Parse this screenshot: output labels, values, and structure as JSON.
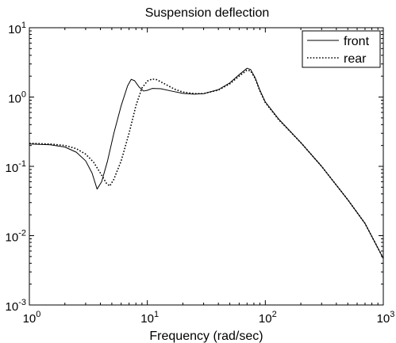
{
  "chart_data": {
    "type": "line",
    "title": "Suspension deflection",
    "xlabel": "Frequency (rad/sec)",
    "ylabel": "",
    "xscale": "log",
    "yscale": "log",
    "xlim": [
      1,
      1000
    ],
    "ylim": [
      0.001,
      10
    ],
    "grid": false,
    "legend_position": "top-right",
    "x_ticks": [
      {
        "base": "10",
        "exp": "0",
        "value": 1
      },
      {
        "base": "10",
        "exp": "1",
        "value": 10
      },
      {
        "base": "10",
        "exp": "2",
        "value": 100
      },
      {
        "base": "10",
        "exp": "3",
        "value": 1000
      }
    ],
    "y_ticks": [
      {
        "base": "10",
        "exp": "-3",
        "value": 0.001
      },
      {
        "base": "10",
        "exp": "-2",
        "value": 0.01
      },
      {
        "base": "10",
        "exp": "-1",
        "value": 0.1
      },
      {
        "base": "10",
        "exp": "0",
        "value": 1
      },
      {
        "base": "10",
        "exp": "1",
        "value": 10
      }
    ],
    "series": [
      {
        "name": "front",
        "style": "solid",
        "color": "#000000",
        "points": [
          [
            1,
            0.21
          ],
          [
            1.5,
            0.205
          ],
          [
            2,
            0.19
          ],
          [
            2.5,
            0.16
          ],
          [
            3,
            0.12
          ],
          [
            3.4,
            0.08
          ],
          [
            3.75,
            0.047
          ],
          [
            4.1,
            0.06
          ],
          [
            4.6,
            0.12
          ],
          [
            5.2,
            0.3
          ],
          [
            6,
            0.75
          ],
          [
            6.8,
            1.45
          ],
          [
            7.3,
            1.8
          ],
          [
            7.8,
            1.72
          ],
          [
            8.5,
            1.4
          ],
          [
            9.3,
            1.22
          ],
          [
            10,
            1.25
          ],
          [
            11,
            1.33
          ],
          [
            13,
            1.32
          ],
          [
            16,
            1.22
          ],
          [
            20,
            1.13
          ],
          [
            25,
            1.1
          ],
          [
            30,
            1.12
          ],
          [
            40,
            1.28
          ],
          [
            50,
            1.6
          ],
          [
            60,
            2.1
          ],
          [
            70,
            2.6
          ],
          [
            75,
            2.5
          ],
          [
            82,
            1.9
          ],
          [
            90,
            1.25
          ],
          [
            100,
            0.85
          ],
          [
            130,
            0.48
          ],
          [
            200,
            0.22
          ],
          [
            300,
            0.1
          ],
          [
            500,
            0.033
          ],
          [
            700,
            0.015
          ],
          [
            1000,
            0.0047
          ]
        ]
      },
      {
        "name": "rear",
        "style": "dotted",
        "color": "#000000",
        "points": [
          [
            1,
            0.215
          ],
          [
            1.5,
            0.21
          ],
          [
            2,
            0.2
          ],
          [
            2.5,
            0.18
          ],
          [
            3,
            0.15
          ],
          [
            3.5,
            0.115
          ],
          [
            4,
            0.08
          ],
          [
            4.5,
            0.057
          ],
          [
            4.8,
            0.052
          ],
          [
            5.2,
            0.065
          ],
          [
            6,
            0.12
          ],
          [
            7,
            0.3
          ],
          [
            8,
            0.75
          ],
          [
            9,
            1.35
          ],
          [
            10,
            1.7
          ],
          [
            11,
            1.82
          ],
          [
            12,
            1.78
          ],
          [
            14,
            1.55
          ],
          [
            17,
            1.3
          ],
          [
            20,
            1.18
          ],
          [
            25,
            1.12
          ],
          [
            30,
            1.12
          ],
          [
            40,
            1.26
          ],
          [
            50,
            1.55
          ],
          [
            60,
            2.0
          ],
          [
            70,
            2.45
          ],
          [
            75,
            2.38
          ],
          [
            82,
            1.85
          ],
          [
            90,
            1.22
          ],
          [
            100,
            0.83
          ],
          [
            130,
            0.47
          ],
          [
            200,
            0.22
          ],
          [
            300,
            0.1
          ],
          [
            500,
            0.033
          ],
          [
            700,
            0.015
          ],
          [
            1000,
            0.0047
          ]
        ]
      }
    ]
  }
}
